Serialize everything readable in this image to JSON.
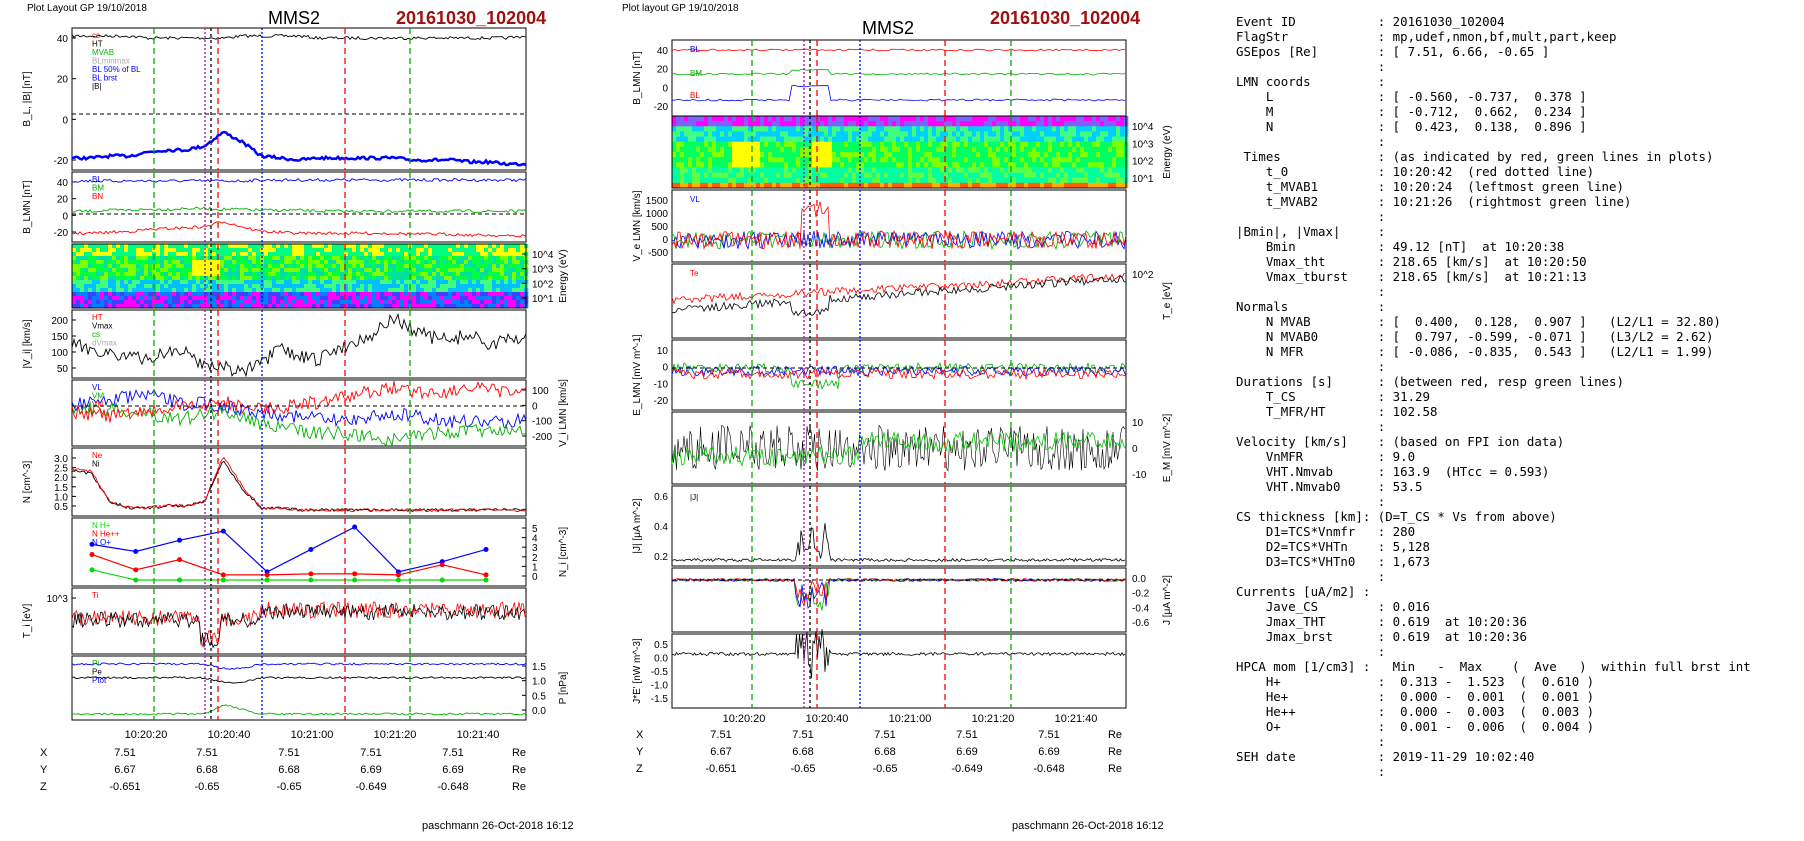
{
  "left_panel": {
    "layout_label": "Plot Layout GP 19/10/2018",
    "spacecraft": "MMS2",
    "event": "20161030_102004",
    "time_ticks": [
      "10:20:20",
      "10:20:40",
      "10:21:00",
      "10:21:20",
      "10:21:40"
    ],
    "footer": "paschmann 26-Oct-2018 16:12",
    "positions": [
      {
        "label": "X",
        "values": [
          "7.51",
          "7.51",
          "7.51",
          "7.51",
          "7.51"
        ],
        "unit": "Re"
      },
      {
        "label": "Y",
        "values": [
          "6.67",
          "6.68",
          "6.68",
          "6.69",
          "6.69"
        ],
        "unit": "Re"
      },
      {
        "label": "Z",
        "values": [
          "-0.651",
          "-0.65",
          "-0.65",
          "-0.649",
          "-0.648"
        ],
        "unit": "Re"
      }
    ]
  },
  "right_panel": {
    "layout_label": "Plot layout GP 19/10/2018",
    "spacecraft": "MMS2",
    "event": "20161030_102004",
    "time_ticks": [
      "10:20:20",
      "10:20:40",
      "10:21:00",
      "10:21:20",
      "10:21:40"
    ],
    "footer": "paschmann 26-Oct-2018 16:12",
    "positions": [
      {
        "label": "X",
        "values": [
          "7.51",
          "7.51",
          "7.51",
          "7.51",
          "7.51"
        ],
        "unit": "Re"
      },
      {
        "label": "Y",
        "values": [
          "6.67",
          "6.68",
          "6.68",
          "6.69",
          "6.69"
        ],
        "unit": "Re"
      },
      {
        "label": "Z",
        "values": [
          "-0.651",
          "-0.65",
          "-0.65",
          "-0.649",
          "-0.648"
        ],
        "unit": "Re"
      }
    ]
  },
  "chart_data": [
    {
      "type": "line",
      "ylabel": "B_L, |B| [nT]",
      "yticks": [
        "40",
        "20",
        "0",
        "-20"
      ],
      "legend": [
        "cs",
        "HT",
        "MVAB",
        "BLminmax",
        "BL 50% of BL",
        "BL brst",
        "|B|"
      ],
      "series": [
        {
          "name": "|B|",
          "color": "#000000",
          "values": [
            49,
            49,
            49,
            49,
            48,
            48,
            48,
            48,
            48,
            49,
            49,
            49,
            49,
            48,
            48,
            48,
            48,
            48,
            48,
            48,
            48,
            48,
            48,
            48,
            49
          ]
        },
        {
          "name": "BL brst",
          "color": "#0000ff",
          "values": [
            -12,
            -12,
            -11,
            -11,
            -9,
            -8,
            -8,
            -6,
            1,
            -4,
            -11,
            -12,
            -13,
            -12,
            -12,
            -12,
            -12,
            -12,
            -13,
            -13,
            -13,
            -14,
            -14,
            -15,
            -15
          ]
        }
      ]
    },
    {
      "type": "line",
      "ylabel": "B_LMN [nT]",
      "yticks": [
        "40",
        "20",
        "0",
        "-20"
      ],
      "legend": [
        "BL",
        "BM",
        "BN"
      ],
      "series": [
        {
          "name": "BL",
          "color": "#0000ff",
          "values": [
            45,
            45,
            45,
            45,
            45,
            45,
            45,
            45,
            45,
            45,
            46,
            46,
            46,
            46,
            46,
            46,
            46,
            46,
            46,
            46,
            46,
            46,
            46,
            46,
            46
          ]
        },
        {
          "name": "BM",
          "color": "#00b000",
          "values": [
            12,
            12,
            13,
            13,
            14,
            14,
            15,
            15,
            14,
            14,
            13,
            13,
            13,
            12,
            12,
            12,
            12,
            12,
            12,
            12,
            12,
            12,
            12,
            12,
            12
          ]
        },
        {
          "name": "BN",
          "color": "#ff0000",
          "values": [
            -12,
            -12,
            -11,
            -10,
            -8,
            -7,
            -6,
            -5,
            1,
            -5,
            -10,
            -11,
            -12,
            -12,
            -12,
            -12,
            -12,
            -12,
            -13,
            -13,
            -13,
            -14,
            -14,
            -15,
            -15
          ]
        }
      ]
    },
    {
      "type": "heatmap",
      "ylabel": "Energy (eV)",
      "yticks": [
        "10^4",
        "10^3",
        "10^2",
        "10^1"
      ]
    },
    {
      "type": "line",
      "ylabel": "|V_i| [km/s]",
      "yticks": [
        "200",
        "150",
        "100",
        "50"
      ],
      "legend": [
        "HT",
        "Vmax",
        "cs",
        "dVmax"
      ],
      "series": [
        {
          "name": "|Vi|",
          "color": "#000000",
          "values": [
            110,
            100,
            90,
            80,
            70,
            95,
            90,
            60,
            55,
            40,
            60,
            100,
            80,
            70,
            100,
            120,
            140,
            180,
            150,
            130,
            120,
            140,
            110,
            120,
            130
          ]
        }
      ]
    },
    {
      "type": "line",
      "ylabel": "V_i LMN [km/s]",
      "yticks": [
        "100",
        "0",
        "-100",
        "-200"
      ],
      "legend": [
        "VL",
        "VM",
        "VN"
      ],
      "series": [
        {
          "name": "VL",
          "color": "#0000ff",
          "values": [
            20,
            30,
            40,
            50,
            60,
            40,
            20,
            30,
            10,
            0,
            -10,
            -20,
            -30,
            -40,
            -50,
            -40,
            -30,
            -20,
            -30,
            -40,
            -50,
            -50,
            -60,
            -50,
            -40
          ]
        },
        {
          "name": "VM",
          "color": "#00b000",
          "values": [
            10,
            5,
            0,
            -10,
            -20,
            -30,
            -40,
            -20,
            -10,
            -30,
            -60,
            -80,
            -90,
            -100,
            -100,
            -110,
            -120,
            -130,
            -110,
            -100,
            -100,
            -90,
            -90,
            -80,
            -80
          ]
        },
        {
          "name": "VN",
          "color": "#ff0000",
          "values": [
            -10,
            -20,
            -30,
            -20,
            -10,
            0,
            10,
            20,
            30,
            10,
            0,
            10,
            20,
            30,
            40,
            60,
            80,
            90,
            80,
            70,
            80,
            90,
            80,
            70,
            80
          ]
        }
      ]
    },
    {
      "type": "line",
      "ylabel": "N [cm^-3]",
      "yticks": [
        "3.0",
        "2.5",
        "2.0",
        "1.5",
        "1.0",
        "0.5"
      ],
      "legend": [
        "Ne",
        "Ni"
      ],
      "series": [
        {
          "name": "Ni",
          "color": "#000000",
          "values": [
            2.2,
            2.1,
            0.8,
            0.5,
            0.5,
            0.6,
            0.6,
            0.8,
            2.7,
            1.4,
            0.5,
            0.5,
            0.4,
            0.4,
            0.4,
            0.4,
            0.4,
            0.4,
            0.4,
            0.4,
            0.4,
            0.4,
            0.4,
            0.4,
            0.4
          ]
        },
        {
          "name": "Ne",
          "color": "#ff0000",
          "values": [
            2.3,
            2.2,
            0.8,
            0.5,
            0.5,
            0.6,
            0.6,
            0.8,
            2.9,
            1.5,
            0.5,
            0.5,
            0.4,
            0.4,
            0.4,
            0.4,
            0.4,
            0.4,
            0.4,
            0.4,
            0.4,
            0.4,
            0.4,
            0.4,
            0.4
          ]
        }
      ]
    },
    {
      "type": "line",
      "ylabel": "N_i [cm^-3]",
      "yticks": [
        "5",
        "4",
        "3",
        "2",
        "1",
        "0"
      ],
      "legend": [
        "N H+",
        "N He++",
        "N O+"
      ],
      "series": [
        {
          "name": "N O+",
          "color": "#0000ff",
          "values": [
            3.5,
            2.8,
            3.9,
            4.8,
            0.8,
            3.0,
            5.2,
            0.8,
            1.8,
            3.0
          ]
        },
        {
          "name": "N He++",
          "color": "#ff0000",
          "values": [
            2.5,
            1.0,
            2.0,
            0.5,
            0.5,
            0.6,
            0.6,
            0.5,
            1.5,
            0.5
          ]
        },
        {
          "name": "N H+",
          "color": "#00dd00",
          "values": [
            1.0,
            0.0,
            0.0,
            0.0,
            0.0,
            0.0,
            0.0,
            0.0,
            0.0,
            0.0
          ]
        }
      ]
    },
    {
      "type": "line",
      "ylabel": "T_i [eV]",
      "yticks": [
        "10^3"
      ],
      "legend": [
        "Ti"
      ],
      "series": [
        {
          "name": "Ti",
          "color": "#ff0000",
          "values": [
            0,
            0,
            0,
            0,
            0,
            0,
            0,
            0,
            0,
            0,
            0,
            0,
            0,
            0,
            0,
            0,
            0,
            0,
            0,
            0,
            0,
            0,
            0,
            0,
            0
          ]
        }
      ]
    },
    {
      "type": "line",
      "ylabel": "P [nPa]",
      "yticks": [
        "1.5",
        "1.0",
        "0.5",
        "0.0"
      ],
      "legend": [
        "Pi",
        "Pe",
        "Ptot"
      ],
      "series": [
        {
          "name": "Ptot",
          "color": "#0000ff",
          "values": [
            1.3,
            1.3,
            1.3,
            1.3,
            1.3,
            1.3,
            1.3,
            1.3,
            1.2,
            1.2,
            1.3,
            1.3,
            1.3,
            1.3,
            1.3,
            1.3,
            1.3,
            1.3,
            1.3,
            1.3,
            1.3,
            1.3,
            1.3,
            1.3,
            1.3
          ]
        },
        {
          "name": "Pe",
          "color": "#000000",
          "values": [
            1.0,
            1.0,
            1.0,
            1.0,
            1.0,
            1.0,
            1.0,
            1.0,
            0.9,
            0.9,
            1.0,
            1.0,
            1.0,
            1.0,
            1.0,
            1.0,
            1.0,
            1.0,
            1.0,
            1.0,
            1.0,
            1.0,
            1.0,
            1.0,
            1.0
          ]
        },
        {
          "name": "Pi",
          "color": "#00b000",
          "values": [
            0.2,
            0.2,
            0.2,
            0.2,
            0.2,
            0.2,
            0.2,
            0.2,
            0.4,
            0.3,
            0.2,
            0.2,
            0.2,
            0.2,
            0.2,
            0.2,
            0.2,
            0.2,
            0.2,
            0.2,
            0.2,
            0.2,
            0.2,
            0.2,
            0.2
          ]
        }
      ]
    }
  ],
  "info_text": [
    "Event ID           : 20161030_102004",
    "FlagStr            : mp,udef,nmon,bf,mult,part,keep",
    "GSEpos [Re]        : [ 7.51, 6.66, -0.65 ]",
    "                   :",
    "LMN coords         :",
    "    L              : [ -0.560, -0.737,  0.378 ]",
    "    M              : [ -0.712,  0.662,  0.234 ]",
    "    N              : [  0.423,  0.138,  0.896 ]",
    "                   :",
    " Times             : (as indicated by red, green lines in plots)",
    "    t_0            : 10:20:42  (red dotted line)",
    "    t_MVAB1        : 10:20:24  (leftmost green line)",
    "    t_MVAB2        : 10:21:26  (rightmost green line)",
    "                   :",
    "|Bmin|, |Vmax|     :",
    "    Bmin           : 49.12 [nT]  at 10:20:38",
    "    Vmax_tht       : 218.65 [km/s]  at 10:20:50",
    "    Vmax_tburst    : 218.65 [km/s]  at 10:21:13",
    "                   :",
    "Normals            :",
    "    N MVAB         : [  0.400,  0.128,  0.907 ]   (L2/L1 = 32.80)",
    "    N MVAB0        : [  0.797, -0.599, -0.071 ]   (L3/L2 = 2.62)",
    "    N MFR          : [ -0.086, -0.835,  0.543 ]   (L2/L1 = 1.99)",
    "                   :",
    "Durations [s]      : (between red, resp green lines)",
    "    T_CS           : 31.29",
    "    T_MFR/HT       : 102.58",
    "                   :",
    "Velocity [km/s]    : (based on FPI ion data)",
    "    VnMFR          : 9.0",
    "    VHT.Nmvab      : 163.9  (HTcc = 0.593)",
    "    VHT.Nmvab0     : 53.5",
    "                   :",
    "CS thickness [km]: (D=T_CS * Vs from above)",
    "    D1=TCS*Vnmfr   : 280",
    "    D2=TCS*VHTn    : 5,128",
    "    D3=TCS*VHTn0   : 1,673",
    "                   :",
    "Currents [uA/m2] :",
    "    Jave_CS        : 0.016",
    "    Jmax_THT       : 0.619  at 10:20:36",
    "    Jmax_brst      : 0.619  at 10:20:36",
    "                   :",
    "HPCA mom [1/cm3] :   Min   -  Max    (  Ave   )  within full brst int",
    "    H+             :  0.313 -  1.523  (  0.610 )",
    "    He+            :  0.000 -  0.001  (  0.001 )",
    "    He++           :  0.000 -  0.003  (  0.003 )",
    "    O+             :  0.001 -  0.006  (  0.004 )",
    "                   :",
    "SEH date           : 2019-11-29 10:02:40",
    "                   :"
  ]
}
